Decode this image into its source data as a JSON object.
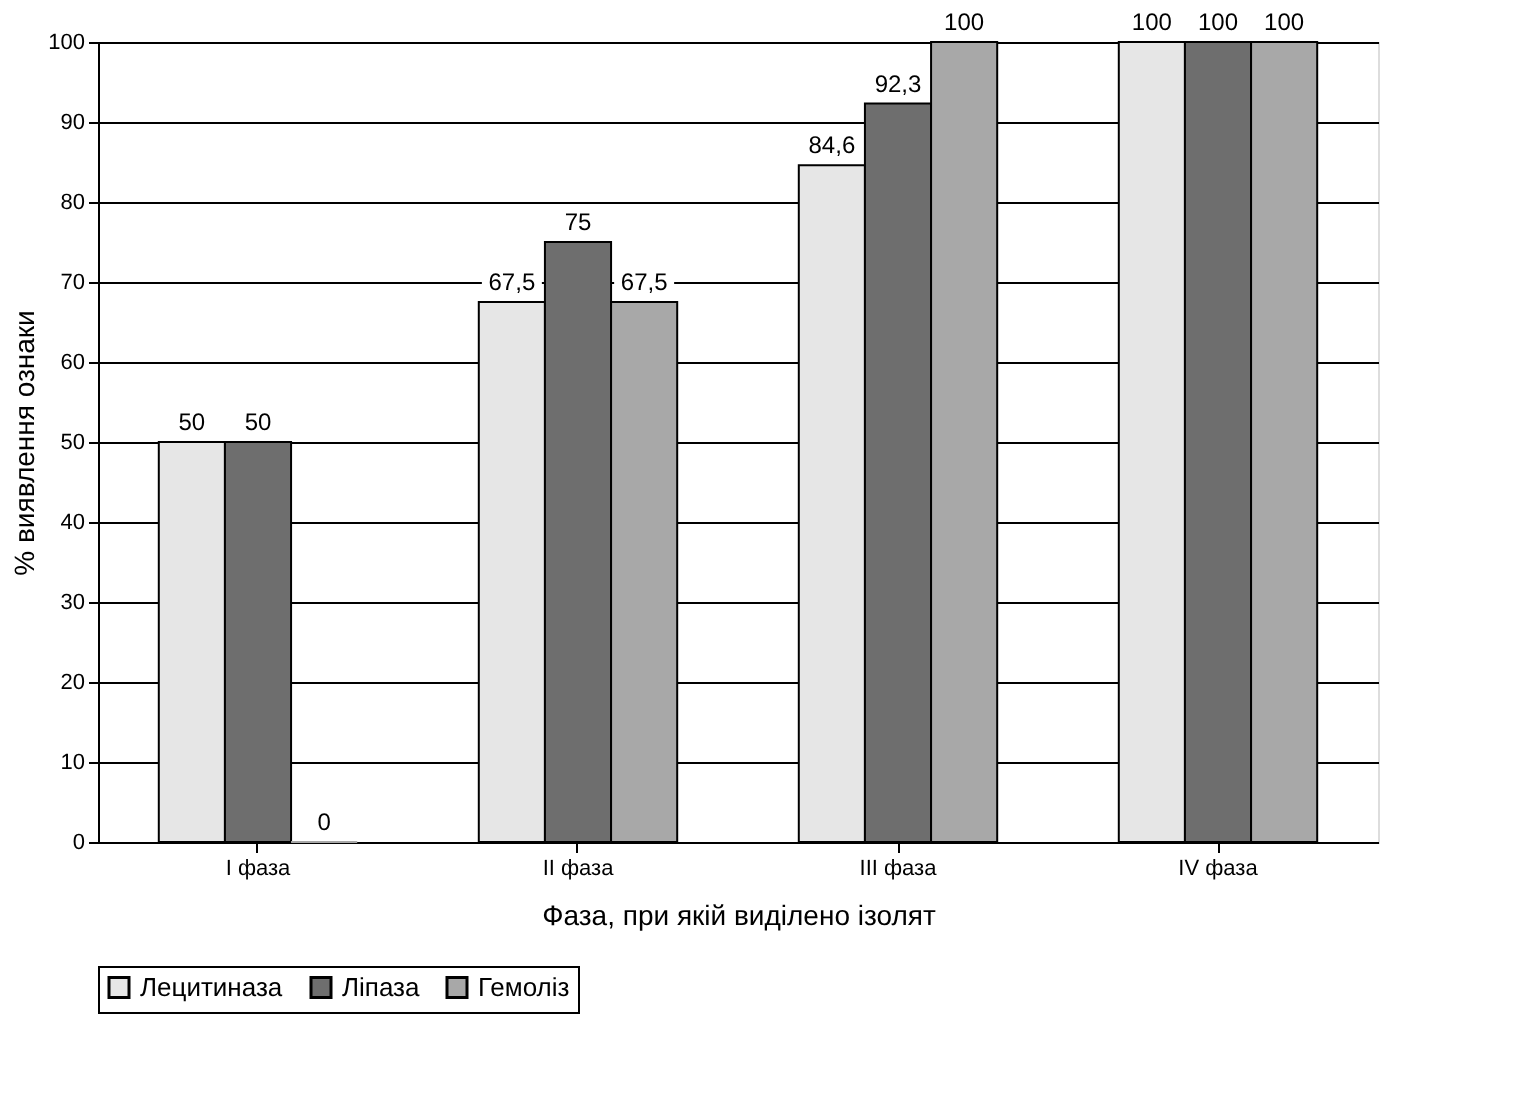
{
  "chart_data": {
    "type": "bar",
    "xlabel": "Фаза, при якій виділено ізолят",
    "ylabel": "% виявлення ознаки",
    "categories": [
      "I фаза",
      "II фаза",
      "III фаза",
      "IV фаза"
    ],
    "series": [
      {
        "name": "Лецитиназа",
        "color": "#e6e6e6",
        "values": [
          50,
          67.5,
          84.6,
          100
        ],
        "value_labels": [
          "50",
          "67,5",
          "84,6",
          "100"
        ]
      },
      {
        "name": "Ліпаза",
        "color": "#6e6e6e",
        "values": [
          50,
          75,
          92.3,
          100
        ],
        "value_labels": [
          "50",
          "75",
          "92,3",
          "100"
        ]
      },
      {
        "name": "Гемоліз",
        "color": "#a8a8a8",
        "values": [
          0,
          67.5,
          100,
          100
        ],
        "value_labels": [
          "0",
          "67,5",
          "100",
          "100"
        ]
      }
    ],
    "ylim": [
      0,
      100
    ],
    "yticks": [
      0,
      10,
      20,
      30,
      40,
      50,
      60,
      70,
      80,
      90,
      100
    ],
    "grid": "y",
    "legend": "bottom"
  }
}
